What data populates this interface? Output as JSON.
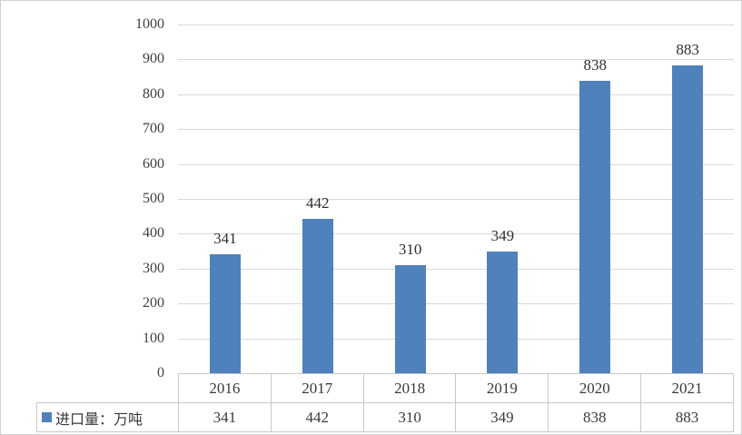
{
  "chart_data": {
    "type": "bar",
    "title": "",
    "categories": [
      "2016",
      "2017",
      "2018",
      "2019",
      "2020",
      "2021"
    ],
    "series": [
      {
        "name": "进口量：万吨",
        "values": [
          341,
          442,
          310,
          349,
          838,
          883
        ]
      }
    ],
    "data_labels": [
      "341",
      "442",
      "310",
      "349",
      "838",
      "883"
    ],
    "xlabel": "",
    "ylabel": "",
    "ylim": [
      0,
      1000
    ],
    "yticks": [
      "0",
      "100",
      "200",
      "300",
      "400",
      "500",
      "600",
      "700",
      "800",
      "900",
      "1000"
    ],
    "grid": true,
    "legend_position": "bottom-left-table"
  },
  "legend": {
    "label": "进口量：万吨",
    "marker": "blue-square",
    "marker_color": "#4F81BD"
  },
  "data_table": {
    "header_row": [
      "2016",
      "2017",
      "2018",
      "2019",
      "2020",
      "2021"
    ],
    "value_row": [
      "341",
      "442",
      "310",
      "349",
      "838",
      "883"
    ],
    "row_label": "进口量：万吨"
  },
  "colors": {
    "bar": "#4F81BD",
    "gridline": "#D9D9D9",
    "table_border": "#C9C9C9",
    "text": "#3F3F3F",
    "background": "#FFFFFF",
    "outer_border": "#D0D0D0"
  }
}
